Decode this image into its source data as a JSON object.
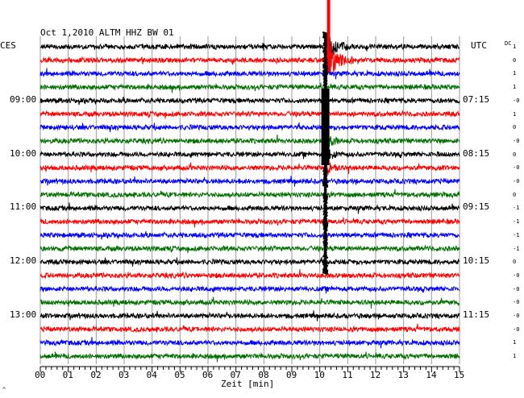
{
  "chart_data": {
    "type": "line",
    "title": "Oct 1,2010   ALTM HHZ BW 01",
    "xlabel": "Zeit [min]",
    "left_axis_title": "CES",
    "right_axis_title": "UTC",
    "dc_title": "DC",
    "xlim": [
      0,
      15
    ],
    "x_ticks": [
      "00",
      "01",
      "02",
      "03",
      "04",
      "05",
      "06",
      "07",
      "08",
      "09",
      "10",
      "11",
      "12",
      "13",
      "14",
      "15"
    ],
    "left_time_labels": [
      {
        "trace": 4,
        "text": "09:00"
      },
      {
        "trace": 8,
        "text": "10:00"
      },
      {
        "trace": 12,
        "text": "11:00"
      },
      {
        "trace": 16,
        "text": "12:00"
      },
      {
        "trace": 20,
        "text": "13:00"
      }
    ],
    "right_time_labels": [
      {
        "trace": 4,
        "text": "07:15"
      },
      {
        "trace": 8,
        "text": "08:15"
      },
      {
        "trace": 12,
        "text": "09:15"
      },
      {
        "trace": 16,
        "text": "10:15"
      },
      {
        "trace": 20,
        "text": "11:15"
      }
    ],
    "trace_colors": [
      "#000000",
      "#ff0000",
      "#0000ff",
      "#007000"
    ],
    "dc_offsets": [
      "1",
      "0",
      "1",
      "1",
      "-0",
      "1",
      "0",
      "-0",
      "0",
      "-0",
      "-0",
      "0",
      "-1",
      "-1",
      "-1",
      "-1",
      "0",
      "-0",
      "-0",
      "-0",
      "-0",
      "-0",
      "1",
      "1"
    ],
    "event": {
      "time_min": 10.2,
      "note": "large seismic event"
    },
    "traces_count": 24,
    "trace_interval_min": 15
  },
  "corner_mark": "^"
}
